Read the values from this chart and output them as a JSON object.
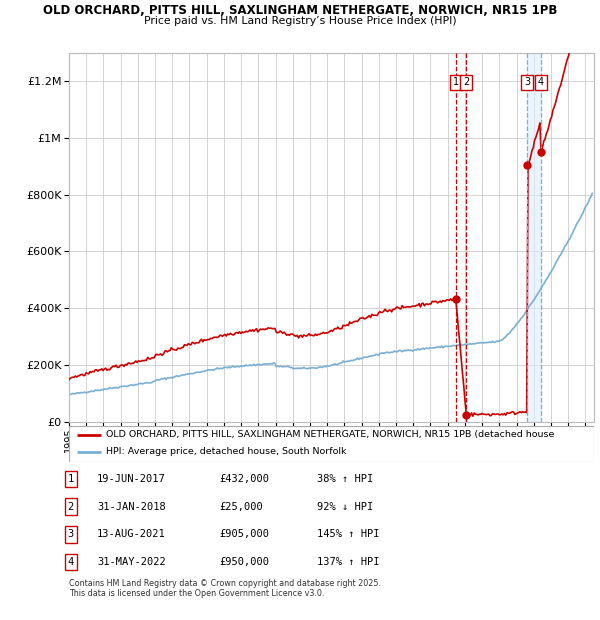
{
  "title_line1": "OLD ORCHARD, PITTS HILL, SAXLINGHAM NETHERGATE, NORWICH, NR15 1PB",
  "title_line2": "Price paid vs. HM Land Registry’s House Price Index (HPI)",
  "ylim": [
    0,
    1300000
  ],
  "yticks": [
    0,
    200000,
    400000,
    600000,
    800000,
    1000000,
    1200000
  ],
  "ytick_labels": [
    "£0",
    "£200K",
    "£400K",
    "£600K",
    "£800K",
    "£1M",
    "£1.2M"
  ],
  "xmin": 1995.0,
  "xmax": 2025.5,
  "background_color": "#ffffff",
  "grid_color": "#cccccc",
  "red_line_color": "#cc0000",
  "blue_line_color": "#7aafd4",
  "blue_shade_color": "#ddeeff",
  "transactions": [
    {
      "num": 1,
      "x": 2017.47,
      "price": 432000,
      "label": "19-JUN-2017",
      "price_str": "£432,000",
      "pct": "38%",
      "dir": "↑"
    },
    {
      "num": 2,
      "x": 2018.08,
      "price": 25000,
      "label": "31-JAN-2018",
      "price_str": "£25,000",
      "pct": "92%",
      "dir": "↓"
    },
    {
      "num": 3,
      "x": 2021.62,
      "price": 905000,
      "label": "13-AUG-2021",
      "price_str": "£905,000",
      "pct": "145%",
      "dir": "↑"
    },
    {
      "num": 4,
      "x": 2022.41,
      "price": 950000,
      "label": "31-MAY-2022",
      "price_str": "£950,000",
      "pct": "137%",
      "dir": "↑"
    }
  ],
  "legend_label_red": "OLD ORCHARD, PITTS HILL, SAXLINGHAM NETHERGATE, NORWICH, NR15 1PB (detached house",
  "legend_label_blue": "HPI: Average price, detached house, South Norfolk",
  "footer_line1": "Contains HM Land Registry data © Crown copyright and database right 2025.",
  "footer_line2": "This data is licensed under the Open Government Licence v3.0."
}
